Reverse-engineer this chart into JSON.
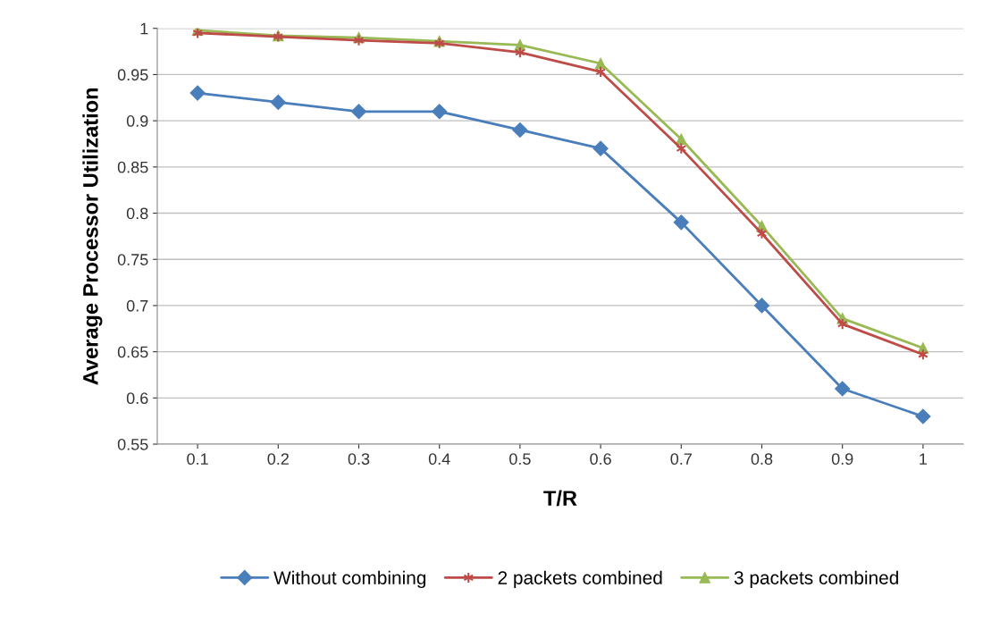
{
  "chart_data": {
    "type": "line",
    "xlabel": "T/R",
    "ylabel": "Average Processor Utilization",
    "categories": [
      "0.1",
      "0.2",
      "0.3",
      "0.4",
      "0.5",
      "0.6",
      "0.7",
      "0.8",
      "0.9",
      "1"
    ],
    "series": [
      {
        "name": "Without combining",
        "color": "#4a7ebb",
        "marker": "diamond",
        "values": [
          0.93,
          0.92,
          0.91,
          0.91,
          0.89,
          0.87,
          0.79,
          0.7,
          0.61,
          0.58
        ]
      },
      {
        "name": "2 packets combined",
        "color": "#be4b48",
        "marker": "cross",
        "values": [
          0.995,
          0.991,
          0.987,
          0.984,
          0.974,
          0.953,
          0.87,
          0.778,
          0.68,
          0.647
        ]
      },
      {
        "name": "3 packets combined",
        "color": "#98b954",
        "marker": "triangle",
        "values": [
          0.998,
          0.992,
          0.99,
          0.986,
          0.982,
          0.962,
          0.88,
          0.786,
          0.686,
          0.654
        ]
      }
    ],
    "ylim": [
      0.55,
      1
    ],
    "yticks": [
      0.55,
      0.6,
      0.65,
      0.7,
      0.75,
      0.8,
      0.85,
      0.9,
      0.95,
      1
    ],
    "grid": "y",
    "legend": "bottom",
    "line_style": "solid"
  }
}
